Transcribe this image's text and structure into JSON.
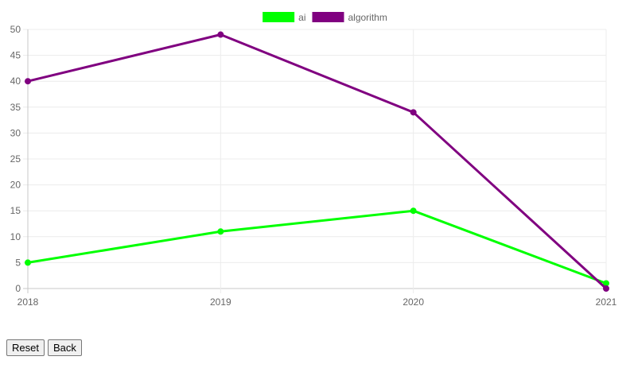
{
  "chart_data": {
    "type": "line",
    "x": [
      "2018",
      "2019",
      "2020",
      "2021"
    ],
    "series": [
      {
        "name": "ai",
        "values": [
          5,
          11,
          15,
          1
        ],
        "color": "#00ff00"
      },
      {
        "name": "algorithm",
        "values": [
          40,
          49,
          34,
          0
        ],
        "color": "#800080"
      }
    ],
    "ylim": [
      0,
      50
    ],
    "yticks": [
      0,
      5,
      10,
      15,
      20,
      25,
      30,
      35,
      40,
      45,
      50
    ],
    "grid": true,
    "legend_position": "top-center",
    "title": "",
    "xlabel": "",
    "ylabel": ""
  },
  "controls": {
    "reset_label": "Reset",
    "back_label": "Back"
  }
}
